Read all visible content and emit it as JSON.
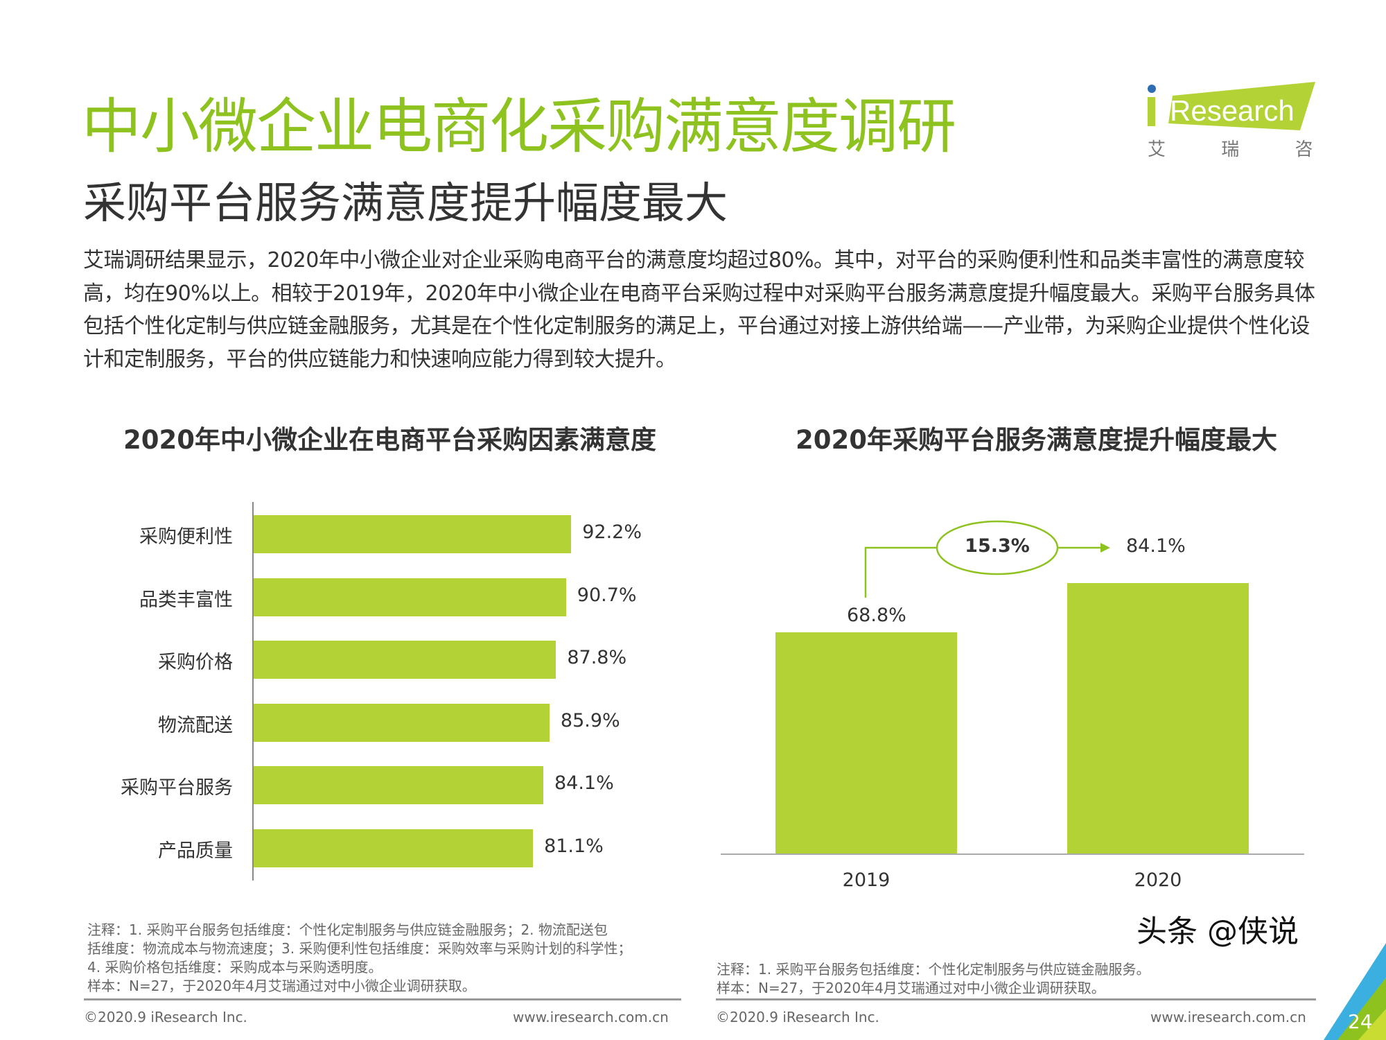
{
  "header": {
    "title": "中小微企业电商化采购满意度调研",
    "subtitle": "采购平台服务满意度提升幅度最大",
    "logo": {
      "text": "iResearch",
      "cn": "艾 瑞 咨 询",
      "color": "#b2d235"
    }
  },
  "paragraph": "艾瑞调研结果显示，2020年中小微企业对企业采购电商平台的满意度均超过80%。其中，对平台的采购便利性和品类丰富性的满意度较高，均在90%以上。相较于2019年，2020年中小微企业在电商平台采购过程中对采购平台服务满意度提升幅度最大。采购平台服务具体包括个性化定制与供应链金融服务，尤其是在个性化定制服务的满足上，平台通过对接上游供给端——产业带，为采购企业提供个性化设计和定制服务，平台的供应链能力和快速响应能力得到较大提升。",
  "chart_data": [
    {
      "type": "bar",
      "orientation": "horizontal",
      "title": "2020年中小微企业在电商平台采购因素满意度",
      "categories": [
        "采购便利性",
        "品类丰富性",
        "采购价格",
        "物流配送",
        "采购平台服务",
        "产品质量"
      ],
      "values": [
        92.2,
        90.7,
        87.8,
        85.9,
        84.1,
        81.1
      ],
      "labels": [
        "92.2%",
        "90.7%",
        "87.8%",
        "85.9%",
        "84.1%",
        "81.1%"
      ],
      "unit": "%",
      "color": "#b2d235",
      "grid": false
    },
    {
      "type": "bar",
      "title": "2020年采购平台服务满意度提升幅度最大",
      "categories": [
        "2019",
        "2020"
      ],
      "values": [
        68.8,
        84.1
      ],
      "labels": [
        "68.8%",
        "84.1%"
      ],
      "annotation": "15.3%",
      "unit": "%",
      "color": "#b2d235",
      "grid": false
    }
  ],
  "notes": {
    "left": [
      "注释：1. 采购平台服务包括维度：个性化定制服务与供应链金融服务；2. 物流配送包",
      "括维度：物流成本与物流速度；3. 采购便利性包括维度：采购效率与采购计划的科学性；",
      "4. 采购价格包括维度：采购成本与采购透明度。",
      "样本：N=27，于2020年4月艾瑞通过对中小微企业调研获取。"
    ],
    "right": [
      "注释：1. 采购平台服务包括维度：个性化定制服务与供应链金融服务。",
      "样本：N=27，于2020年4月艾瑞通过对中小微企业调研获取。"
    ]
  },
  "footer": {
    "copyright": "©2020.9 iResearch Inc.",
    "url": "www.iresearch.com.cn",
    "page": "24"
  },
  "watermark": "头条 @侠说"
}
